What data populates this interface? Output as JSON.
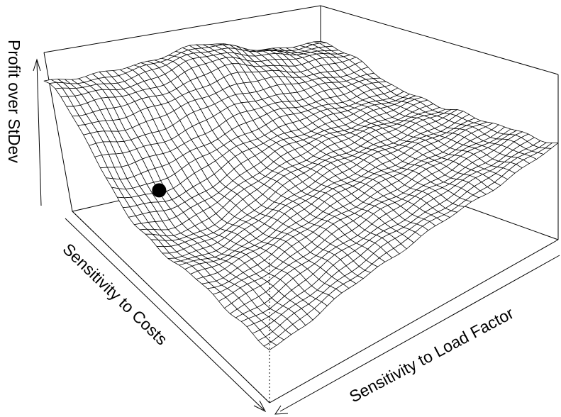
{
  "chart_data": {
    "type": "surface",
    "xlabel": "Sensitivity to Costs",
    "ylabel": "Sensitivity to Load Factor",
    "zlabel": "Profit over StDev",
    "ticks_shown": false,
    "grid_resolution": [
      40,
      40
    ],
    "x_range": [
      0,
      1
    ],
    "y_range": [
      0,
      1
    ],
    "z_range": [
      0,
      1
    ],
    "surface_description_points": [
      {
        "x": 0.0,
        "y": 0.0,
        "z": 0.78
      },
      {
        "x": 0.0,
        "y": 0.5,
        "z": 0.8
      },
      {
        "x": 0.0,
        "y": 1.0,
        "z": 0.55
      },
      {
        "x": 0.5,
        "y": 0.0,
        "z": 0.55
      },
      {
        "x": 0.5,
        "y": 0.5,
        "z": 0.5
      },
      {
        "x": 0.5,
        "y": 1.0,
        "z": 0.42
      },
      {
        "x": 1.0,
        "y": 0.0,
        "z": 0.35
      },
      {
        "x": 1.0,
        "y": 0.5,
        "z": 0.4
      },
      {
        "x": 1.0,
        "y": 1.0,
        "z": 0.45
      }
    ],
    "highlight_point": {
      "x": 0.28,
      "y": 0.12,
      "z": 0.88
    },
    "colors": {
      "surface_fill": "#ffffff",
      "mesh_line": "#000000",
      "point": "#000000"
    }
  }
}
